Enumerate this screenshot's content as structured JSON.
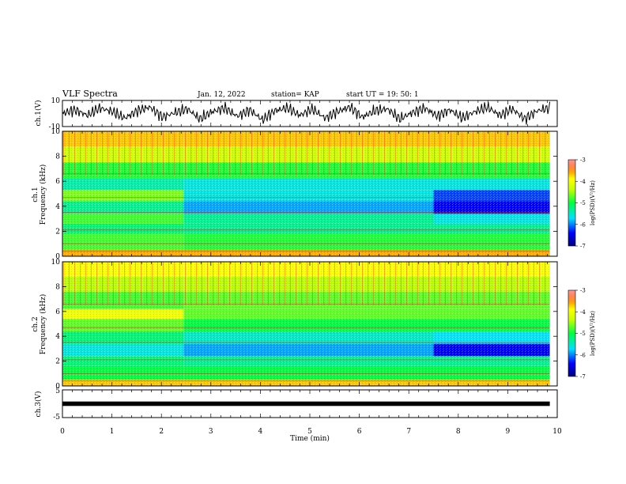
{
  "header": {
    "title": "VLF Spectra",
    "date": "Jan. 12, 2022",
    "station": "station= KAP",
    "start": "start UT =  19: 50: 1"
  },
  "colorbar": {
    "label": "log(PSD)(V²/Hz)",
    "ticks": [
      "-3",
      "-4",
      "-5",
      "-6",
      "-7"
    ],
    "range": [
      -7,
      -3
    ]
  },
  "chart_data": [
    {
      "type": "line",
      "panel": "ch1-waveform",
      "ylabel": "ch.1(V)",
      "ylim": [
        -10,
        10
      ],
      "ytick_labels": [
        "10",
        "-10"
      ],
      "x_range": [
        0,
        9.85
      ],
      "note_values": "downsampled envelope: approx. oscillation between -9 and 8 V around ~0",
      "values": [
        0,
        4,
        -2,
        6,
        2,
        -5,
        3,
        7,
        -4,
        1,
        5,
        -6,
        2,
        6,
        -3,
        4,
        -7,
        3,
        6,
        -2,
        5,
        -5,
        2,
        7,
        -4,
        3,
        5,
        -6,
        1,
        6,
        -3,
        4,
        -5,
        2,
        7,
        -2,
        5,
        -6,
        3,
        6
      ]
    },
    {
      "type": "heatmap",
      "panel": "ch1-spectrogram",
      "ylabel": "ch.1 Frequency (kHz)",
      "ylim": [
        0,
        10
      ],
      "xlim": [
        0,
        10
      ],
      "yticks": [
        0,
        2,
        4,
        6,
        8,
        10
      ],
      "time_segments": [
        0,
        2.45,
        7.5,
        9.85
      ],
      "bands": [
        {
          "f0": 0.0,
          "f1": 0.5,
          "logpsd": [
            -3.6,
            -3.6,
            -3.6
          ]
        },
        {
          "f0": 0.5,
          "f1": 1.8,
          "logpsd": [
            -4.8,
            -4.9,
            -4.9
          ]
        },
        {
          "f0": 1.8,
          "f1": 2.6,
          "logpsd": [
            -5.2,
            -5.3,
            -5.3
          ]
        },
        {
          "f0": 2.6,
          "f1": 3.4,
          "logpsd": [
            -4.8,
            -5.3,
            -5.6
          ]
        },
        {
          "f0": 3.4,
          "f1": 4.4,
          "logpsd": [
            -5.3,
            -5.9,
            -6.4
          ]
        },
        {
          "f0": 4.4,
          "f1": 5.3,
          "logpsd": [
            -4.6,
            -5.6,
            -6.2
          ]
        },
        {
          "f0": 5.3,
          "f1": 6.2,
          "logpsd": [
            -5.4,
            -5.6,
            -5.6
          ]
        },
        {
          "f0": 6.2,
          "f1": 7.5,
          "logpsd": [
            -4.9,
            -4.9,
            -4.9
          ]
        },
        {
          "f0": 7.5,
          "f1": 8.8,
          "logpsd": [
            -4.3,
            -4.3,
            -4.3
          ]
        },
        {
          "f0": 8.8,
          "f1": 10.0,
          "logpsd": [
            -3.7,
            -3.7,
            -3.7
          ]
        }
      ]
    },
    {
      "type": "heatmap",
      "panel": "ch2-spectrogram",
      "ylabel": "ch.2 Frequency (kHz)",
      "ylim": [
        0,
        10
      ],
      "xlim": [
        0,
        10
      ],
      "yticks": [
        0,
        2,
        4,
        6,
        8,
        10
      ],
      "time_segments": [
        0,
        2.45,
        7.5,
        9.85
      ],
      "bands": [
        {
          "f0": 0.0,
          "f1": 0.5,
          "logpsd": [
            -3.7,
            -3.7,
            -3.7
          ]
        },
        {
          "f0": 0.5,
          "f1": 1.6,
          "logpsd": [
            -5.0,
            -5.0,
            -5.0
          ]
        },
        {
          "f0": 1.6,
          "f1": 2.4,
          "logpsd": [
            -5.2,
            -5.3,
            -5.3
          ]
        },
        {
          "f0": 2.4,
          "f1": 3.4,
          "logpsd": [
            -5.6,
            -5.9,
            -6.4
          ]
        },
        {
          "f0": 3.4,
          "f1": 4.4,
          "logpsd": [
            -5.2,
            -5.5,
            -5.7
          ]
        },
        {
          "f0": 4.4,
          "f1": 5.4,
          "logpsd": [
            -4.7,
            -5.0,
            -5.0
          ]
        },
        {
          "f0": 5.4,
          "f1": 6.2,
          "logpsd": [
            -4.0,
            -4.7,
            -4.7
          ]
        },
        {
          "f0": 6.2,
          "f1": 7.6,
          "logpsd": [
            -4.8,
            -4.7,
            -4.7
          ]
        },
        {
          "f0": 7.6,
          "f1": 8.8,
          "logpsd": [
            -4.4,
            -4.4,
            -4.4
          ]
        },
        {
          "f0": 8.8,
          "f1": 10.0,
          "logpsd": [
            -3.9,
            -3.9,
            -3.9
          ]
        }
      ]
    },
    {
      "type": "line",
      "panel": "ch3-waveform",
      "ylabel": "ch.3(V)",
      "ylim": [
        -5,
        5
      ],
      "ytick_labels": [
        "5",
        "-5"
      ],
      "x_range": [
        0,
        9.85
      ],
      "y_band": [
        -0.8,
        0.8
      ]
    }
  ],
  "xaxis": {
    "label": "Time (min)",
    "ticks": [
      0,
      1,
      2,
      3,
      4,
      5,
      6,
      7,
      8,
      9,
      10
    ],
    "range": [
      0,
      10
    ]
  }
}
